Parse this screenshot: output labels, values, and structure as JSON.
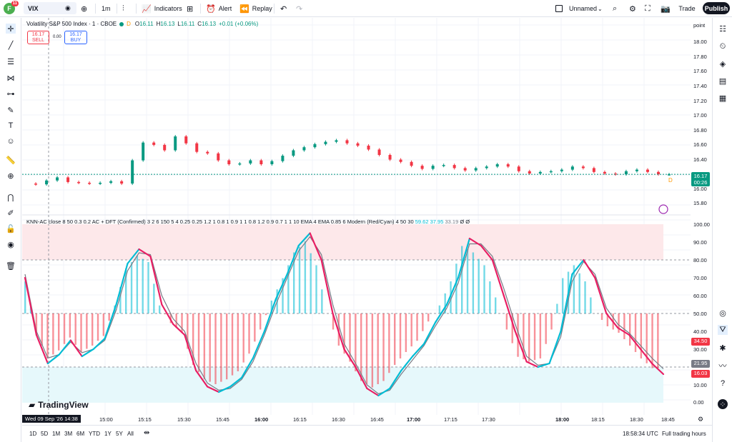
{
  "topbar": {
    "avatar_letter": "F",
    "notif_count": "11",
    "symbol": "VIX",
    "interval": "1m",
    "indicators_label": "Indicators",
    "alert_label": "Alert",
    "replay_label": "Replay",
    "layout_name": "Unnamed",
    "trade_label": "Trade",
    "publish_label": "Publish"
  },
  "legend": {
    "title": "Volatility S&P 500 Index · 1 · CBOE",
    "o_label": "O",
    "o": "16.11",
    "h_label": "H",
    "h": "16.13",
    "l_label": "L",
    "l": "16.11",
    "c_label": "C",
    "c": "16.13",
    "change": "+0.01 (+0.06%)",
    "sell_price": "16.17",
    "sell_label": "SELL",
    "spread": "0.00",
    "buy_price": "16.17",
    "buy_label": "BUY",
    "d_marker": "D"
  },
  "price_axis": {
    "unit_label": "point",
    "labels": [
      "18.00",
      "17.80",
      "17.60",
      "17.40",
      "17.20",
      "17.00",
      "16.80",
      "16.60",
      "16.40",
      "16.20",
      "16.00",
      "15.80"
    ],
    "last_price": "16.17",
    "countdown": "00:26"
  },
  "indicator": {
    "name": "KNN-AC close 8 50 0.3 0.2 AC + DFT (Confirmed) 3 2 6 150 5 4 0.25 0.25 1.2 1 0.8 1 0.9 1 1 0.8 1.2 0.9 0.7 1 1 10 EMA 4 EMA 0.85 6 Modern (Red/Cyan) 4 50 30",
    "v1": "59.62",
    "v2": "37.95",
    "v3": "33.19",
    "v4": "Ø",
    "v5": "Ø",
    "axis_labels": [
      "100.00",
      "90.00",
      "80.00",
      "70.00",
      "60.00",
      "50.00",
      "40.00",
      "30.00",
      "20.00",
      "10.00",
      "0.00"
    ],
    "badge_red": "34.50",
    "badge_gray": "21.95",
    "badge_last": "16.03"
  },
  "time_axis": {
    "cursor_label": "Wed 09 Sep '26   14:38",
    "ticks": [
      "15:00",
      "15:15",
      "15:30",
      "15:45",
      "16:00",
      "16:15",
      "16:30",
      "16:45",
      "17:00",
      "17:15",
      "17:30",
      "18:00",
      "18:15",
      "18:30",
      "18:45"
    ]
  },
  "bottombar": {
    "ranges": [
      "1D",
      "5D",
      "1M",
      "3M",
      "6M",
      "YTD",
      "1Y",
      "5Y",
      "All"
    ],
    "clock": "18:58:34 UTC",
    "session": "Full trading hours"
  },
  "brand": {
    "name": "TradingView"
  },
  "chart_data": [
    {
      "type": "candlestick",
      "title": "Volatility S&P 500 Index · 1 · CBOE",
      "ylim": [
        15.7,
        18.1
      ],
      "x_ticks": [
        "15:00",
        "15:15",
        "15:30",
        "15:45",
        "16:00",
        "16:15",
        "16:30",
        "16:45",
        "17:00",
        "17:15",
        "17:30",
        "18:00",
        "18:15",
        "18:30",
        "18:45"
      ],
      "close_path": [
        16.05,
        16.04,
        16.09,
        16.13,
        16.07,
        16.06,
        16.05,
        16.06,
        16.08,
        16.05,
        16.35,
        16.58,
        16.55,
        16.48,
        16.66,
        16.57,
        16.46,
        16.44,
        16.35,
        16.3,
        16.31,
        16.35,
        16.3,
        16.34,
        16.41,
        16.48,
        16.52,
        16.56,
        16.59,
        16.61,
        16.57,
        16.54,
        16.49,
        16.42,
        16.36,
        16.33,
        16.28,
        16.24,
        16.28,
        16.29,
        16.25,
        16.22,
        16.25,
        16.27,
        16.3,
        16.27,
        16.21,
        16.18,
        16.2,
        16.21,
        16.23,
        16.27,
        16.25,
        16.2,
        16.18,
        16.17,
        16.21,
        16.23,
        16.2,
        16.17,
        16.17
      ],
      "last": 16.17,
      "colors": {
        "up": "#089981",
        "down": "#f23645"
      }
    },
    {
      "type": "line",
      "title": "KNN-AC",
      "ylim": [
        0,
        100
      ],
      "levels": [
        80,
        50,
        20
      ],
      "series": [
        {
          "name": "",
          "values": [
            70,
            38,
            22,
            27,
            35,
            26,
            30,
            36,
            55,
            78,
            86,
            82,
            55,
            44,
            38,
            18,
            9,
            6,
            9,
            14,
            25,
            40,
            58,
            72,
            88,
            95,
            80,
            50,
            30,
            20,
            8,
            4,
            8,
            18,
            26,
            33,
            45,
            55,
            70,
            92,
            88,
            80,
            60,
            40,
            23,
            20,
            22,
            40,
            72,
            80,
            70,
            50,
            42,
            38,
            30,
            22,
            16
          ]
        },
        {
          "name": "",
          "values": [
            72,
            40,
            25,
            27,
            34,
            28,
            30,
            35,
            52,
            74,
            84,
            83,
            60,
            47,
            40,
            22,
            11,
            7,
            8,
            13,
            23,
            38,
            55,
            70,
            85,
            93,
            83,
            55,
            33,
            22,
            10,
            5,
            7,
            16,
            24,
            32,
            43,
            53,
            67,
            89,
            89,
            82,
            64,
            44,
            26,
            21,
            22,
            37,
            68,
            79,
            72,
            53,
            44,
            39,
            32,
            25,
            19
          ]
        }
      ],
      "histogram_colors": {
        "up": "#00bcd4",
        "down": "#f23645"
      }
    }
  ]
}
